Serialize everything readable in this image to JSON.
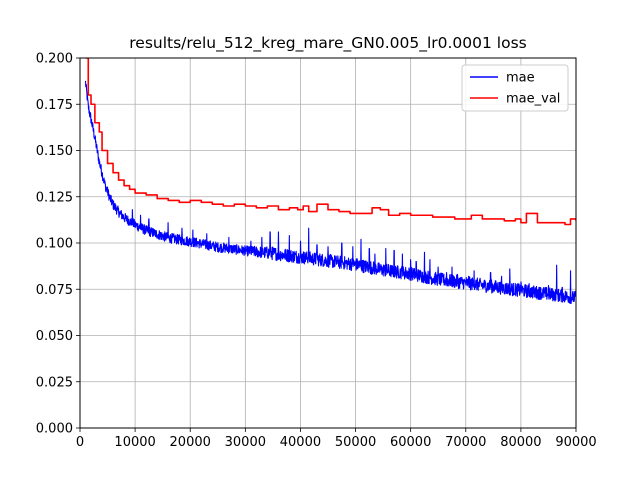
{
  "chart_data": {
    "type": "line",
    "title": "results/relu_512_kreg_mare_GN0.005_lr0.0001 loss",
    "xlabel": "",
    "ylabel": "",
    "xlim": [
      0,
      90000
    ],
    "ylim": [
      0.0,
      0.2
    ],
    "xticks": [
      0,
      10000,
      20000,
      30000,
      40000,
      50000,
      60000,
      70000,
      80000,
      90000
    ],
    "xtick_labels": [
      "0",
      "10000",
      "20000",
      "30000",
      "40000",
      "50000",
      "60000",
      "70000",
      "80000",
      "90000"
    ],
    "yticks": [
      0.0,
      0.025,
      0.05,
      0.075,
      0.1,
      0.125,
      0.15,
      0.175,
      0.2
    ],
    "ytick_labels": [
      "0.000",
      "0.025",
      "0.050",
      "0.075",
      "0.100",
      "0.125",
      "0.150",
      "0.175",
      "0.200"
    ],
    "grid": true,
    "legend_position": "top-right",
    "series": [
      {
        "name": "mae",
        "color": "#0000ff",
        "x": [
          1000,
          1500,
          2000,
          2500,
          3000,
          3500,
          4000,
          4500,
          5000,
          5500,
          6000,
          7000,
          8000,
          9000,
          10000,
          12000,
          14000,
          16000,
          18000,
          20000,
          25000,
          30000,
          35000,
          40000,
          45000,
          50000,
          55000,
          60000,
          65000,
          70000,
          75000,
          80000,
          85000,
          90000
        ],
        "values": [
          0.185,
          0.172,
          0.165,
          0.158,
          0.15,
          0.142,
          0.136,
          0.13,
          0.126,
          0.122,
          0.119,
          0.115,
          0.112,
          0.11,
          0.108,
          0.105,
          0.103,
          0.101,
          0.1,
          0.099,
          0.096,
          0.094,
          0.092,
          0.09,
          0.088,
          0.086,
          0.083,
          0.081,
          0.078,
          0.076,
          0.074,
          0.072,
          0.07,
          0.068
        ],
        "noise": [
          0.006,
          0.006,
          0.006,
          0.006,
          0.006,
          0.006,
          0.006,
          0.006,
          0.006,
          0.006,
          0.006,
          0.006,
          0.006,
          0.006,
          0.006,
          0.006,
          0.006,
          0.006,
          0.006,
          0.006,
          0.006,
          0.006,
          0.008,
          0.008,
          0.008,
          0.008,
          0.008,
          0.008,
          0.008,
          0.008,
          0.008,
          0.008,
          0.008,
          0.008
        ],
        "spikes": [
          [
            9500,
            0.118
          ],
          [
            11000,
            0.115
          ],
          [
            12500,
            0.113
          ],
          [
            16000,
            0.111
          ],
          [
            18500,
            0.108
          ],
          [
            20500,
            0.107
          ],
          [
            23000,
            0.105
          ],
          [
            27000,
            0.103
          ],
          [
            31000,
            0.101
          ],
          [
            33000,
            0.103
          ],
          [
            34500,
            0.106
          ],
          [
            36000,
            0.106
          ],
          [
            38000,
            0.104
          ],
          [
            40000,
            0.101
          ],
          [
            41500,
            0.108
          ],
          [
            43000,
            0.099
          ],
          [
            45000,
            0.098
          ],
          [
            47500,
            0.1
          ],
          [
            49500,
            0.098
          ],
          [
            51000,
            0.102
          ],
          [
            52500,
            0.097
          ],
          [
            53500,
            0.094
          ],
          [
            55500,
            0.097
          ],
          [
            57000,
            0.096
          ],
          [
            58500,
            0.094
          ],
          [
            60000,
            0.091
          ],
          [
            61000,
            0.09
          ],
          [
            62500,
            0.095
          ],
          [
            63500,
            0.091
          ],
          [
            65000,
            0.087
          ],
          [
            66500,
            0.084
          ],
          [
            67500,
            0.087
          ],
          [
            68500,
            0.083
          ],
          [
            70500,
            0.082
          ],
          [
            71500,
            0.085
          ],
          [
            74500,
            0.084
          ],
          [
            76500,
            0.082
          ],
          [
            78000,
            0.086
          ],
          [
            80000,
            0.079
          ],
          [
            81500,
            0.078
          ],
          [
            83500,
            0.076
          ],
          [
            85000,
            0.077
          ],
          [
            86500,
            0.088
          ],
          [
            87500,
            0.076
          ],
          [
            89000,
            0.085
          ]
        ]
      },
      {
        "name": "mae_val",
        "color": "#ff0000",
        "step": true,
        "x": [
          1000,
          1500,
          2000,
          2700,
          3500,
          4000,
          5000,
          6000,
          7000,
          8000,
          9000,
          10000,
          12000,
          14000,
          16000,
          18000,
          20000,
          22000,
          24000,
          26000,
          28000,
          30000,
          32000,
          34000,
          36000,
          38000,
          39500,
          40500,
          41500,
          43000,
          45000,
          47000,
          49000,
          51000,
          53000,
          54500,
          56000,
          58000,
          60000,
          62000,
          64000,
          66000,
          68000,
          70000,
          71000,
          73000,
          75000,
          77000,
          79000,
          80000,
          81000,
          83000,
          85000,
          87000,
          88000,
          89000,
          90000
        ],
        "values": [
          0.2,
          0.18,
          0.175,
          0.165,
          0.16,
          0.15,
          0.143,
          0.138,
          0.134,
          0.131,
          0.129,
          0.127,
          0.126,
          0.124,
          0.123,
          0.122,
          0.123,
          0.122,
          0.121,
          0.12,
          0.121,
          0.12,
          0.119,
          0.12,
          0.118,
          0.119,
          0.118,
          0.12,
          0.117,
          0.121,
          0.118,
          0.117,
          0.116,
          0.116,
          0.119,
          0.118,
          0.115,
          0.116,
          0.115,
          0.115,
          0.114,
          0.114,
          0.113,
          0.113,
          0.115,
          0.113,
          0.113,
          0.112,
          0.113,
          0.111,
          0.116,
          0.111,
          0.111,
          0.111,
          0.11,
          0.113,
          0.112
        ]
      }
    ]
  }
}
